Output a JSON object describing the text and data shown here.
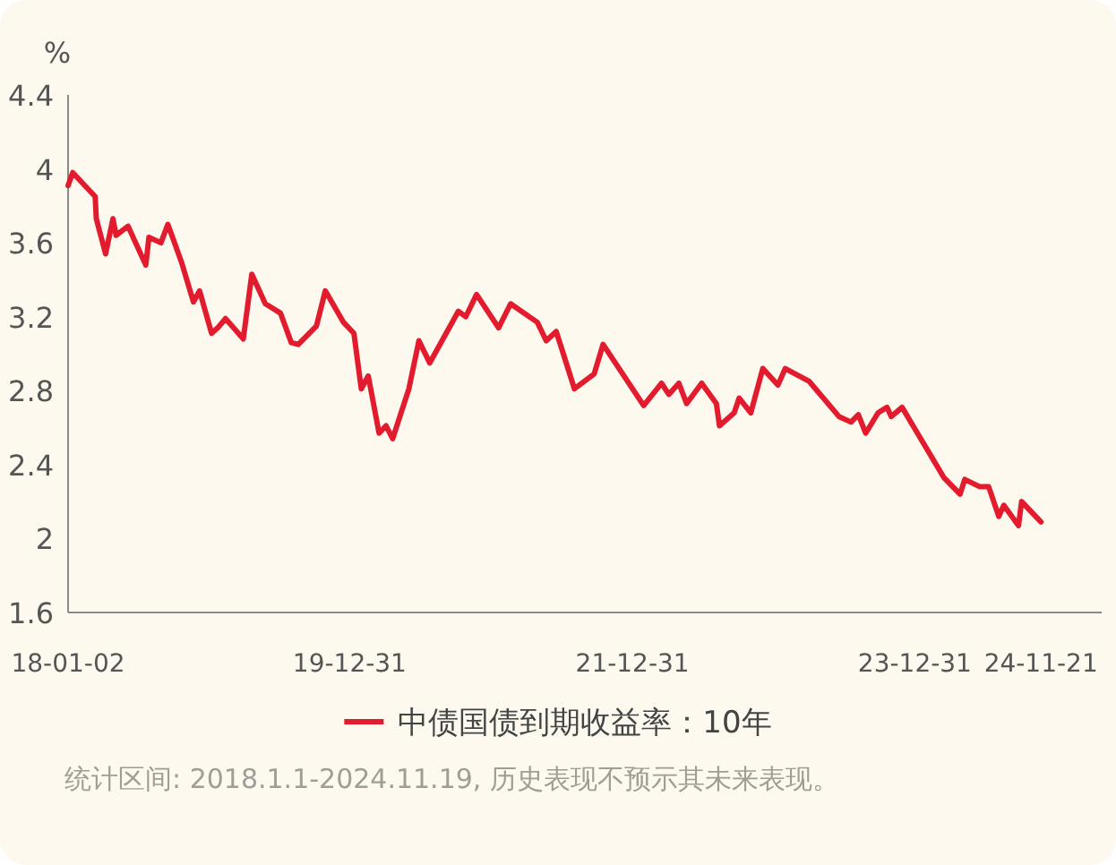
{
  "chart_data": {
    "type": "line",
    "ylabel": "%",
    "x": [
      "2018-01-02",
      "2018-01-14",
      "2018-03-13",
      "2018-03-16",
      "2018-04-09",
      "2018-04-28",
      "2018-05-06",
      "2018-06-06",
      "2018-07-22",
      "2018-07-30",
      "2018-08-30",
      "2018-09-17",
      "2018-10-23",
      "2018-11-22",
      "2018-12-08",
      "2019-01-08",
      "2019-01-24",
      "2019-02-13",
      "2019-03-31",
      "2019-04-22",
      "2019-05-27",
      "2019-07-05",
      "2019-08-02",
      "2019-08-20",
      "2019-10-06",
      "2019-10-29",
      "2019-12-15",
      "2020-01-11",
      "2020-01-30",
      "2020-02-17",
      "2020-03-16",
      "2020-04-03",
      "2020-04-20",
      "2020-06-01",
      "2020-06-27",
      "2020-07-25",
      "2020-10-07",
      "2020-10-26",
      "2020-11-23",
      "2021-01-19",
      "2021-02-19",
      "2021-04-29",
      "2021-05-22",
      "2021-06-17",
      "2021-08-03",
      "2021-09-23",
      "2021-10-16",
      "2022-01-29",
      "2022-03-16",
      "2022-04-04",
      "2022-04-30",
      "2022-05-20",
      "2022-06-28",
      "2022-08-05",
      "2022-08-13",
      "2022-09-20",
      "2022-10-03",
      "2022-11-02",
      "2022-12-03",
      "2023-01-11",
      "2023-01-30",
      "2023-04-02",
      "2023-06-18",
      "2023-07-19",
      "2023-08-07",
      "2023-08-26",
      "2023-09-27",
      "2023-10-20",
      "2023-10-31",
      "2023-11-28",
      "2024-03-15",
      "2024-04-26",
      "2024-05-08",
      "2024-06-16",
      "2024-07-09",
      "2024-08-04",
      "2024-08-17",
      "2024-09-24",
      "2024-10-02",
      "2024-11-21"
    ],
    "series": [
      {
        "name": "中债国债到期收益率：10年",
        "color": "#e31b2e",
        "values": [
          3.91,
          3.98,
          3.85,
          3.73,
          3.54,
          3.73,
          3.64,
          3.69,
          3.48,
          3.63,
          3.6,
          3.7,
          3.49,
          3.28,
          3.34,
          3.11,
          3.14,
          3.19,
          3.08,
          3.43,
          3.27,
          3.22,
          3.06,
          3.05,
          3.15,
          3.34,
          3.17,
          3.11,
          2.81,
          2.88,
          2.57,
          2.61,
          2.54,
          2.81,
          3.07,
          2.95,
          3.23,
          3.2,
          3.32,
          3.14,
          3.27,
          3.17,
          3.07,
          3.12,
          2.81,
          2.89,
          3.05,
          2.72,
          2.84,
          2.78,
          2.84,
          2.73,
          2.84,
          2.73,
          2.61,
          2.68,
          2.76,
          2.68,
          2.92,
          2.83,
          2.92,
          2.85,
          2.66,
          2.63,
          2.67,
          2.57,
          2.68,
          2.71,
          2.66,
          2.71,
          2.33,
          2.24,
          2.32,
          2.28,
          2.28,
          2.12,
          2.18,
          2.07,
          2.2,
          2.09
        ]
      }
    ],
    "xlim": [
      "2018-01-02",
      "2025-04-27"
    ],
    "xticks": [
      {
        "value": "2018-01-02",
        "label": "18-01-02"
      },
      {
        "value": "2019-12-31",
        "label": "19-12-31"
      },
      {
        "value": "2021-12-31",
        "label": "21-12-31"
      },
      {
        "value": "2023-12-31",
        "label": "23-12-31"
      },
      {
        "value": "2024-11-21",
        "label": "24-11-21"
      }
    ],
    "ylim": [
      1.6,
      4.4
    ],
    "yticks": [
      1.6,
      2,
      2.4,
      2.8,
      3.2,
      3.6,
      4,
      4.4
    ],
    "grid": false,
    "legend": "bottom",
    "line_style": "solid",
    "annotations": [
      "统计区间: 2018.1.1-2024.11.19, 历史表现不预示其未来表现。"
    ]
  }
}
